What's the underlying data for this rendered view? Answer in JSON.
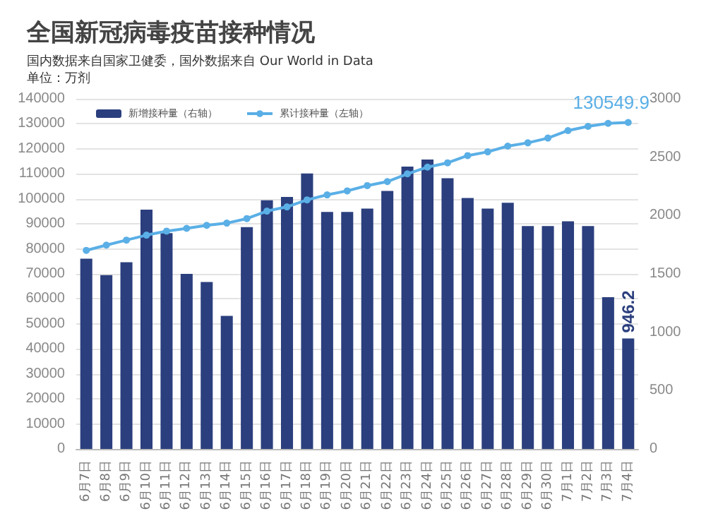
{
  "chart_data": {
    "type": "bar",
    "title": "全国新冠病毒疫苗接种情况",
    "subtitle": "国内数据来自国家卫健委，国外数据来自 Our World in Data\n单位：万剂",
    "categories": [
      "6月7日",
      "6月8日",
      "6月9日",
      "6月10日",
      "6月11日",
      "6月12日",
      "6月13日",
      "6月14日",
      "6月15日",
      "6月16日",
      "6月17日",
      "6月18日",
      "6月19日",
      "6月20日",
      "6月21日",
      "6月22日",
      "6月23日",
      "6月24日",
      "6月25日",
      "6月26日",
      "6月27日",
      "6月28日",
      "6月29日",
      "6月30日",
      "7月1日",
      "7月2日",
      "7月3日",
      "7月4日"
    ],
    "series": [
      {
        "name": "新增接种量（右轴）",
        "axis": "y2",
        "color": "#2b3f7e",
        "values": [
          1630,
          1490,
          1600,
          2050,
          1850,
          1500,
          1430,
          1140,
          1900,
          2130,
          2160,
          2360,
          2030,
          2030,
          2060,
          2210,
          2420,
          2480,
          2320,
          2150,
          2060,
          2110,
          1910,
          1910,
          1950,
          1910,
          1300,
          946.2
        ],
        "value_labels": [
          null,
          null,
          null,
          null,
          null,
          null,
          null,
          null,
          null,
          null,
          null,
          null,
          null,
          null,
          null,
          null,
          null,
          null,
          null,
          null,
          null,
          null,
          null,
          null,
          null,
          null,
          null,
          "946.2"
        ]
      },
      {
        "name": "累计接种量（左轴）",
        "type": "line",
        "color": "#5aafe6",
        "values": [
          79400,
          81500,
          83500,
          85500,
          87100,
          88200,
          89400,
          90300,
          92100,
          95100,
          96800,
          99600,
          101600,
          103200,
          105300,
          106900,
          110000,
          112700,
          114400,
          117300,
          118800,
          121100,
          122400,
          124300,
          127300,
          129000,
          130200,
          130549.9
        ],
        "value_labels": [
          null,
          null,
          null,
          null,
          null,
          null,
          null,
          null,
          null,
          null,
          null,
          null,
          null,
          null,
          null,
          null,
          null,
          null,
          null,
          null,
          null,
          null,
          null,
          null,
          null,
          null,
          null,
          "130549.9"
        ]
      }
    ],
    "ylim": [
      0,
      140000
    ],
    "yticks": [
      0,
      10000,
      20000,
      30000,
      40000,
      50000,
      60000,
      70000,
      80000,
      90000,
      100000,
      110000,
      120000,
      130000,
      140000
    ],
    "y2lim": [
      0,
      3000
    ],
    "y2ticks": [
      0,
      500,
      1000,
      1500,
      2000,
      2500,
      3000
    ],
    "grid": "y",
    "legend": "top left",
    "marker": "circle"
  }
}
